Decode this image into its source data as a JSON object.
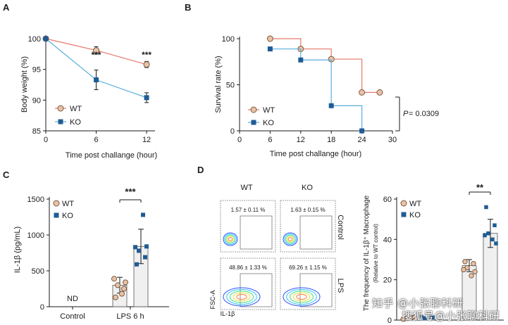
{
  "colors": {
    "wt": "#e8786a",
    "wt_fill": "#e9c2a6",
    "ko": "#5aaedc",
    "ko_fill": "#1f5c94",
    "axis": "#1a1a1a",
    "bar": "#f0f0f0"
  },
  "chart_data": [
    {
      "panel": "A",
      "type": "line",
      "xlabel": "Time post challange (hour)",
      "ylabel": "Body weight (%)",
      "x": [
        0,
        6,
        12
      ],
      "xticks": [
        0,
        6,
        12
      ],
      "yticks": [
        85,
        90,
        95,
        100
      ],
      "ylim": [
        85,
        100
      ],
      "xlim": [
        0,
        13
      ],
      "series": [
        {
          "name": "WT",
          "values": [
            100,
            98.1,
            95.8
          ],
          "err": [
            0,
            0.6,
            0.5
          ]
        },
        {
          "name": "KO",
          "values": [
            100,
            93.3,
            90.4
          ],
          "err": [
            0,
            1.6,
            0.8
          ]
        }
      ],
      "annotations": [
        {
          "x": 6,
          "text": "***"
        },
        {
          "x": 12,
          "text": "***"
        }
      ],
      "legend": "bottom-left"
    },
    {
      "panel": "B",
      "type": "line",
      "xlabel": "Time post challange (hour)",
      "ylabel": "Survival rate (%)",
      "xticks": [
        0,
        6,
        12,
        18,
        24,
        30
      ],
      "yticks": [
        0,
        50,
        100
      ],
      "xlim": [
        0,
        30
      ],
      "ylim": [
        0,
        100
      ],
      "series": [
        {
          "name": "WT",
          "step": [
            [
              6,
              100
            ],
            [
              12,
              100
            ],
            [
              12,
              88.9
            ],
            [
              18,
              88.9
            ],
            [
              18,
              77.8
            ],
            [
              24,
              77.8
            ],
            [
              24,
              41.7
            ],
            [
              27.5,
              41.7
            ]
          ],
          "markers": [
            [
              6,
              100
            ],
            [
              12,
              88.9
            ],
            [
              18,
              77.8
            ],
            [
              24,
              41.7
            ],
            [
              27.5,
              41.7
            ]
          ]
        },
        {
          "name": "KO",
          "step": [
            [
              6,
              88.9
            ],
            [
              12,
              88.9
            ],
            [
              12,
              76.9
            ],
            [
              18,
              76.9
            ],
            [
              18,
              27.3
            ],
            [
              24,
              27.3
            ],
            [
              24,
              0
            ]
          ],
          "markers": [
            [
              6,
              88.9
            ],
            [
              12,
              76.9
            ],
            [
              18,
              27.3
            ],
            [
              24,
              0
            ]
          ]
        }
      ],
      "pvalue": "= 0.0309",
      "pvalue_label": "P",
      "legend": "bottom-left"
    },
    {
      "panel": "C",
      "type": "bar",
      "ylabel": "IL-1β (pg/mL)",
      "categories": [
        "Control",
        "LPS 6 h"
      ],
      "yticks": [
        0,
        500,
        1000,
        1500
      ],
      "ylim": [
        0,
        1500
      ],
      "control_label": "ND",
      "series": [
        {
          "name": "WT",
          "mean": 300,
          "sd": 110,
          "points": [
            130,
            250,
            300,
            340,
            390,
            180
          ]
        },
        {
          "name": "KO",
          "mean": 840,
          "sd": 240,
          "points": [
            590,
            690,
            780,
            840,
            830,
            1280
          ]
        }
      ],
      "annotation": "***",
      "legend": "top-left"
    },
    {
      "panel": "D",
      "type": "scatter",
      "column_labels": [
        "WT",
        "KO"
      ],
      "row_labels": [
        "Control",
        "LPS"
      ],
      "gate_values": [
        [
          "1.57 ± 0.11 %",
          "1.63 ± 0.15 %"
        ],
        [
          "48.86 ± 1.33 %",
          "69.26 ± 1.15 %"
        ]
      ],
      "xlabel": "IL-1β",
      "ylabel": "FSC-A"
    },
    {
      "panel": "D",
      "type": "bar",
      "ylabel": "The frequency of IL-1β⁺ Macrophage",
      "ylabel2": "(Relative to WT control)",
      "categories": [
        "Control",
        "LPS"
      ],
      "yticks": [
        0,
        20,
        40,
        60
      ],
      "ylim": [
        0,
        60
      ],
      "series": [
        {
          "name": "WT",
          "control_mean": 1,
          "lps_mean": 27,
          "lps_sd": 3,
          "control_points": [
            0.6,
            1.2,
            0.9,
            1.4,
            0.5,
            1.1
          ],
          "lps_points": [
            29,
            28,
            26,
            24,
            25,
            22
          ]
        },
        {
          "name": "KO",
          "control_mean": 1.2,
          "lps_mean": 43,
          "lps_sd": 7,
          "control_points": [
            1.0,
            1.5,
            0.8,
            1.3,
            1.6
          ],
          "lps_points": [
            56,
            47,
            43,
            38,
            42,
            40
          ]
        }
      ],
      "annotation": "**",
      "legend": "top-left"
    }
  ],
  "panel_labels": [
    "A",
    "B",
    "C",
    "D"
  ],
  "watermark_lines": [
    "知乎 @小张聊科研",
    "搜狐号@小张聊科研"
  ]
}
